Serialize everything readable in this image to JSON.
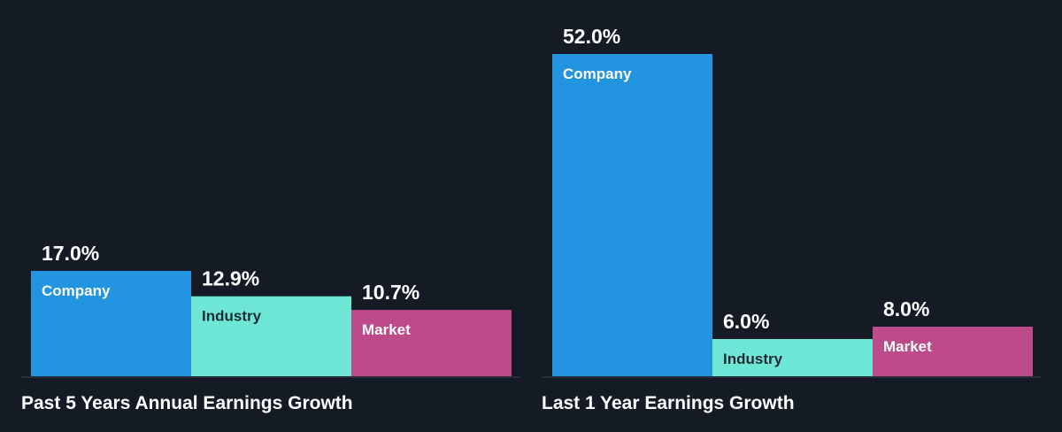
{
  "chart_data": [
    {
      "type": "bar",
      "title": "Past 5 Years Annual Earnings Growth",
      "categories": [
        "Company",
        "Industry",
        "Market"
      ],
      "values": [
        17.0,
        12.9,
        10.7
      ],
      "value_labels": [
        "17.0%",
        "12.9%",
        "10.7%"
      ],
      "unit": "%",
      "ylim": [
        0,
        52.0
      ],
      "grid": false,
      "legend": "none",
      "colors": [
        "#2394e0",
        "#6ee6d5",
        "#bd4a89"
      ],
      "label_colors": [
        "#ffffff",
        "#1f2b33",
        "#ffffff"
      ]
    },
    {
      "type": "bar",
      "title": "Last 1 Year Earnings Growth",
      "categories": [
        "Company",
        "Industry",
        "Market"
      ],
      "values": [
        52.0,
        6.0,
        8.0
      ],
      "value_labels": [
        "52.0%",
        "6.0%",
        "8.0%"
      ],
      "unit": "%",
      "ylim": [
        0,
        52.0
      ],
      "grid": false,
      "legend": "none",
      "colors": [
        "#2394e0",
        "#6ee6d5",
        "#bd4a89"
      ],
      "label_colors": [
        "#ffffff",
        "#1f2b33",
        "#ffffff"
      ]
    }
  ],
  "theme": {
    "background": "#151b24",
    "text": "#ffffff",
    "baseline": "#3a4250"
  }
}
